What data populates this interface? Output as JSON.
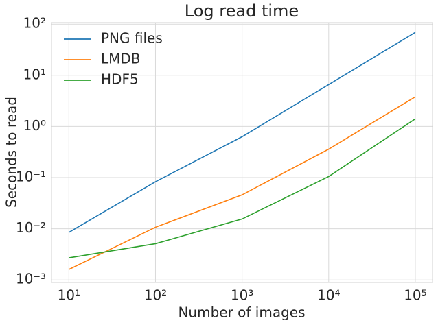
{
  "chart_data": {
    "type": "line",
    "title": "Log read time",
    "xlabel": "Number of images",
    "ylabel": "Seconds to read",
    "x": [
      10,
      100,
      1000,
      10000,
      100000
    ],
    "series": [
      {
        "name": "PNG files",
        "color": "#1f77b4",
        "values": [
          0.0085,
          0.083,
          0.63,
          6.6,
          69
        ]
      },
      {
        "name": "LMDB",
        "color": "#ff7f0e",
        "values": [
          0.0016,
          0.0107,
          0.046,
          0.36,
          3.8
        ]
      },
      {
        "name": "HDF5",
        "color": "#2ca02c",
        "values": [
          0.0027,
          0.0051,
          0.0155,
          0.105,
          1.41
        ]
      }
    ],
    "xscale": "log",
    "yscale": "log",
    "xlim": [
      6.3,
      158000
    ],
    "ylim": [
      0.00089,
      107
    ],
    "xticks": [
      {
        "value": 10,
        "label": "10¹"
      },
      {
        "value": 100,
        "label": "10²"
      },
      {
        "value": 1000,
        "label": "10³"
      },
      {
        "value": 10000,
        "label": "10⁴"
      },
      {
        "value": 100000,
        "label": "10⁵"
      }
    ],
    "yticks": [
      {
        "value": 0.001,
        "label": "10⁻³"
      },
      {
        "value": 0.01,
        "label": "10⁻²"
      },
      {
        "value": 0.1,
        "label": "10⁻¹"
      },
      {
        "value": 1,
        "label": "10⁰"
      },
      {
        "value": 10,
        "label": "10¹"
      },
      {
        "value": 100,
        "label": "10²"
      }
    ],
    "grid": true,
    "legend": "upper left"
  }
}
